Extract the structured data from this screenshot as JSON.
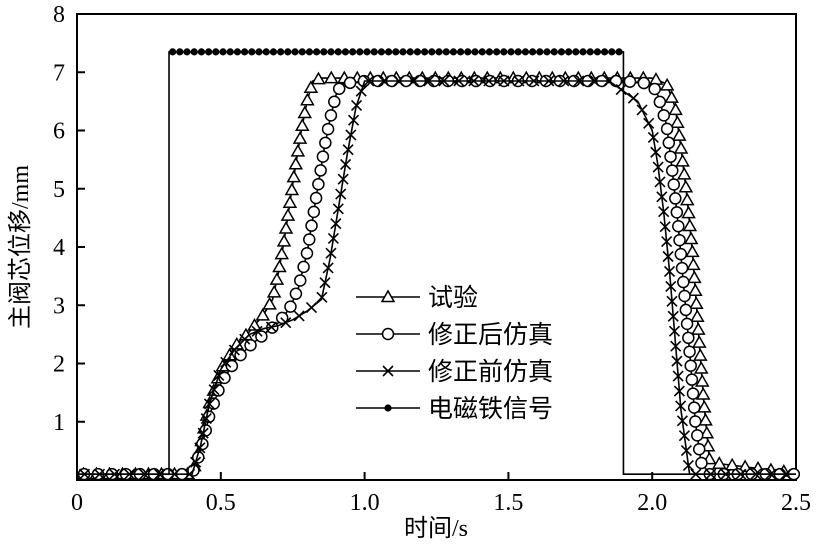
{
  "chart_data": {
    "type": "line",
    "title": "",
    "xlabel": "时间/s",
    "ylabel": "主阀芯位移/mm",
    "xlim": [
      0,
      2.5
    ],
    "ylim": [
      0,
      8
    ],
    "xticks": [
      0,
      0.5,
      1.0,
      1.5,
      2.0,
      2.5
    ],
    "xtick_labels": [
      "0",
      "0.5",
      "1.0",
      "1.5",
      "2.0",
      "2.5"
    ],
    "yticks": [
      1,
      2,
      3,
      4,
      5,
      6,
      7,
      8
    ],
    "ytick_labels": [
      "1",
      "2",
      "3",
      "4",
      "5",
      "6",
      "7",
      "8"
    ],
    "grid": false,
    "legend_position": "center-right",
    "series": [
      {
        "name": "试验",
        "marker": "triangle",
        "x": [
          0.0,
          0.4,
          0.43,
          0.46,
          0.5,
          0.55,
          0.6,
          0.65,
          0.68,
          0.7,
          0.72,
          0.74,
          0.76,
          0.78,
          0.8,
          0.82,
          0.85,
          1.0,
          1.5,
          2.0,
          2.05,
          2.08,
          2.1,
          2.12,
          2.14,
          2.16,
          2.18,
          2.2,
          2.5
        ],
        "y": [
          0.1,
          0.1,
          0.6,
          1.3,
          1.9,
          2.3,
          2.55,
          2.85,
          3.1,
          3.55,
          4.1,
          4.75,
          5.4,
          6.0,
          6.5,
          6.85,
          6.9,
          6.9,
          6.9,
          6.9,
          6.8,
          6.4,
          5.7,
          4.9,
          3.9,
          2.6,
          1.3,
          0.3,
          0.12
        ]
      },
      {
        "name": "修正后仿真",
        "marker": "circle",
        "x": [
          0.0,
          0.4,
          0.43,
          0.46,
          0.5,
          0.55,
          0.6,
          0.65,
          0.7,
          0.74,
          0.77,
          0.8,
          0.82,
          0.84,
          0.86,
          0.88,
          0.9,
          0.92,
          1.0,
          1.5,
          1.9,
          2.0,
          2.02,
          2.05,
          2.07,
          2.09,
          2.11,
          2.13,
          2.15,
          2.17,
          2.2,
          2.5
        ],
        "y": [
          0.1,
          0.1,
          0.5,
          1.1,
          1.65,
          2.05,
          2.3,
          2.5,
          2.7,
          2.95,
          3.3,
          3.9,
          4.5,
          5.1,
          5.7,
          6.2,
          6.6,
          6.8,
          6.85,
          6.85,
          6.85,
          6.8,
          6.6,
          6.1,
          5.3,
          4.4,
          3.3,
          2.2,
          1.0,
          0.3,
          0.1,
          0.1
        ]
      },
      {
        "name": "修正前仿真",
        "marker": "cross",
        "x": [
          0.0,
          0.4,
          0.43,
          0.46,
          0.5,
          0.55,
          0.6,
          0.65,
          0.7,
          0.75,
          0.8,
          0.85,
          0.88,
          0.91,
          0.94,
          0.97,
          1.0,
          1.03,
          1.5,
          1.85,
          1.95,
          2.0,
          2.02,
          2.04,
          2.06,
          2.08,
          2.1,
          2.13,
          2.5
        ],
        "y": [
          0.1,
          0.1,
          0.6,
          1.3,
          1.9,
          2.25,
          2.5,
          2.6,
          2.65,
          2.75,
          2.9,
          3.1,
          3.8,
          4.7,
          5.6,
          6.4,
          6.85,
          6.85,
          6.85,
          6.85,
          6.5,
          6.0,
          5.4,
          4.6,
          3.6,
          2.4,
          1.2,
          0.1,
          0.1
        ]
      },
      {
        "name": "电磁铁信号",
        "marker": "dot",
        "x": [
          0.0,
          0.32,
          0.32,
          1.9,
          1.9,
          2.5
        ],
        "y": [
          0.1,
          0.1,
          7.35,
          7.35,
          0.1,
          0.1
        ]
      }
    ]
  }
}
